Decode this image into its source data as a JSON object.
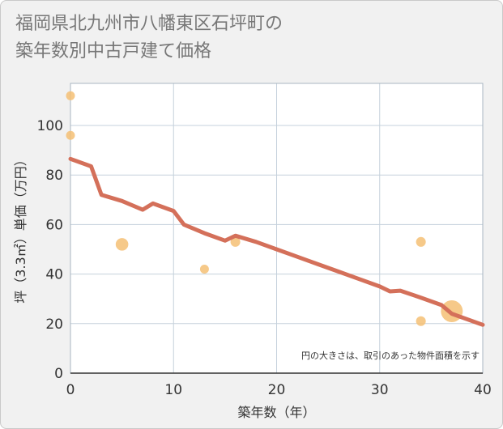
{
  "title_line1": "福岡県北九州市八幡東区石坪町の",
  "title_line2": "築年数別中古戸建て価格",
  "chart_data": {
    "type": "scatter",
    "title": "福岡県北九州市八幡東区石坪町の築年数別中古戸建て価格",
    "xlabel": "築年数（年）",
    "ylabel": "坪（3.3㎡）単価（万円）",
    "xlim": [
      0,
      40
    ],
    "ylim": [
      0,
      117
    ],
    "xticks": [
      0,
      10,
      20,
      30,
      40
    ],
    "yticks": [
      0,
      20,
      40,
      60,
      80,
      100
    ],
    "grid": true,
    "note": "円の大きさは、取引のあった物件面積を示す",
    "points": [
      {
        "x": 0,
        "y": 112,
        "size": 1
      },
      {
        "x": 0,
        "y": 96,
        "size": 1
      },
      {
        "x": 5,
        "y": 52,
        "size": 2
      },
      {
        "x": 13,
        "y": 42,
        "size": 1
      },
      {
        "x": 16,
        "y": 53,
        "size": 1.2
      },
      {
        "x": 34,
        "y": 53,
        "size": 1.2
      },
      {
        "x": 34,
        "y": 21,
        "size": 1.2
      },
      {
        "x": 37,
        "y": 25,
        "size": 6
      }
    ],
    "trend": {
      "x": [
        0,
        2,
        3,
        5,
        7,
        8,
        10,
        11,
        13,
        15,
        16,
        18,
        20,
        22,
        24,
        26,
        28,
        30,
        31,
        32,
        34,
        36,
        37,
        40
      ],
      "y": [
        86.5,
        83.5,
        72,
        69.5,
        66,
        68.5,
        65.5,
        60,
        56.5,
        53.5,
        55.5,
        53,
        50,
        47,
        44,
        41,
        38,
        35,
        33,
        33.3,
        30.5,
        27.5,
        24,
        19.5
      ]
    },
    "colors": {
      "point": "#f5c074",
      "trend": "#d4705a",
      "grid": "#c5d1dc",
      "plot_bg": "#ffffff"
    }
  }
}
